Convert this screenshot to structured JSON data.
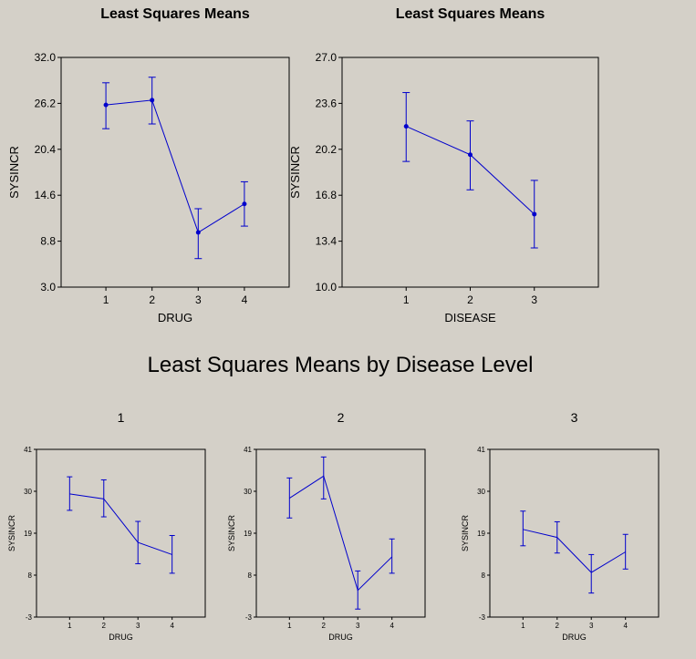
{
  "super_title": "Least Squares Means by Disease Level",
  "chart_data": [
    {
      "type": "line",
      "title": "Least Squares Means",
      "xlabel": "DRUG",
      "ylabel": "SYSINCR",
      "x": [
        "1",
        "2",
        "3",
        "4"
      ],
      "xlim": [
        0.03,
        4.97
      ],
      "ylim": [
        3.0,
        32.0
      ],
      "yticks": [
        "3.0",
        "8.8",
        "14.6",
        "20.4",
        "26.2",
        "32.0"
      ],
      "values": [
        26.0,
        26.6,
        9.9,
        13.5
      ],
      "lower": [
        23.0,
        23.6,
        6.6,
        10.7
      ],
      "upper": [
        28.8,
        29.5,
        12.9,
        16.3
      ],
      "markers": true,
      "color": "#0000cc",
      "grid": false
    },
    {
      "type": "line",
      "title": "Least Squares Means",
      "xlabel": "DISEASE",
      "ylabel": "SYSINCR",
      "x": [
        "1",
        "2",
        "3"
      ],
      "xlim": [
        0.0,
        4.0
      ],
      "ylim": [
        10.0,
        27.0
      ],
      "yticks": [
        "10.0",
        "13.4",
        "16.8",
        "20.2",
        "23.6",
        "27.0"
      ],
      "values": [
        21.9,
        19.8,
        15.4
      ],
      "lower": [
        19.3,
        17.2,
        12.9
      ],
      "upper": [
        24.4,
        22.3,
        17.9
      ],
      "markers": true,
      "color": "#0000cc",
      "grid": false
    },
    {
      "type": "line",
      "title": "1",
      "xlabel": "DRUG",
      "ylabel": "SYSINCR",
      "x": [
        "1",
        "2",
        "3",
        "4"
      ],
      "xlim": [
        0.03,
        4.97
      ],
      "ylim": [
        -3,
        41
      ],
      "yticks": [
        "-3",
        "8",
        "19",
        "30",
        "41"
      ],
      "values": [
        29.3,
        28.0,
        16.6,
        13.4
      ],
      "lower": [
        25.0,
        23.3,
        11.0,
        8.5
      ],
      "upper": [
        33.8,
        33.0,
        22.1,
        18.4
      ],
      "markers": false,
      "color": "#0000cc",
      "grid": false
    },
    {
      "type": "line",
      "title": "2",
      "xlabel": "DRUG",
      "ylabel": "SYSINCR",
      "x": [
        "1",
        "2",
        "3",
        "4"
      ],
      "xlim": [
        0.03,
        4.97
      ],
      "ylim": [
        -3,
        41
      ],
      "yticks": [
        "-3",
        "8",
        "19",
        "30",
        "41"
      ],
      "values": [
        28.2,
        34.0,
        4.0,
        12.8
      ],
      "lower": [
        23.0,
        28.0,
        -0.9,
        8.5
      ],
      "upper": [
        33.5,
        39.0,
        9.1,
        17.5
      ],
      "markers": false,
      "color": "#0000cc",
      "grid": false
    },
    {
      "type": "line",
      "title": "3",
      "xlabel": "DRUG",
      "ylabel": "SYSINCR",
      "x": [
        "1",
        "2",
        "3",
        "4"
      ],
      "xlim": [
        0.03,
        4.97
      ],
      "ylim": [
        -3,
        41
      ],
      "yticks": [
        "-3",
        "8",
        "19",
        "30",
        "41"
      ],
      "values": [
        20.0,
        17.9,
        8.7,
        14.1
      ],
      "lower": [
        15.7,
        13.8,
        3.3,
        9.6
      ],
      "upper": [
        24.8,
        22.0,
        13.4,
        18.7
      ],
      "markers": false,
      "color": "#0000cc",
      "grid": false
    }
  ]
}
